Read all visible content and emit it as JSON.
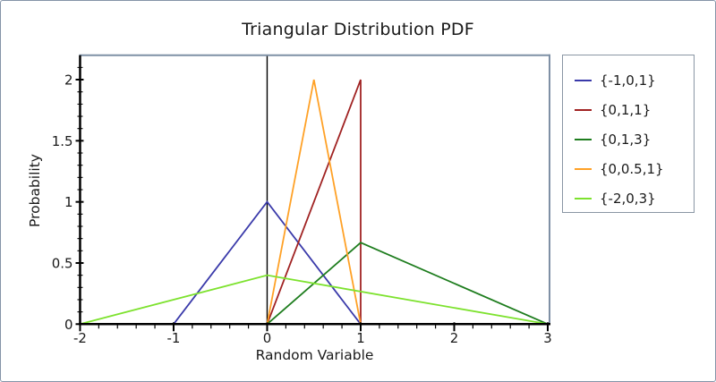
{
  "window": {
    "background": "#ffffff",
    "border_color": "#8494a8"
  },
  "chart_data": {
    "type": "line",
    "title": "Triangular Distribution PDF",
    "xlabel": "Random Variable",
    "ylabel": "Probability",
    "xlim": [
      -2,
      3
    ],
    "ylim": [
      0,
      2.2
    ],
    "x_major_ticks": [
      -2,
      -1,
      0,
      1,
      2,
      3
    ],
    "x_minor_step": 0.2,
    "y_major_ticks": [
      0,
      0.5,
      1,
      1.5,
      2
    ],
    "y_minor_step": 0.1,
    "y_minor_max": 2.1,
    "grid": false,
    "legend_position": "right-outside",
    "frame_color": "#7e90a5",
    "axis_color": "#000000",
    "tick_label_color": "#1a1a1a",
    "zero_line_x": 0,
    "series": [
      {
        "label": "{-1,0,1}",
        "color": "#3a3aaa",
        "points": [
          [
            -1,
            0
          ],
          [
            0,
            1
          ],
          [
            1,
            0
          ]
        ]
      },
      {
        "label": "{0,1,1}",
        "color": "#a02222",
        "points": [
          [
            0,
            0
          ],
          [
            1,
            2
          ],
          [
            1,
            0
          ]
        ]
      },
      {
        "label": "{0,1,3}",
        "color": "#1e7d1e",
        "points": [
          [
            0,
            0
          ],
          [
            1,
            0.6667
          ],
          [
            3,
            0
          ]
        ]
      },
      {
        "label": "{0,0.5,1}",
        "color": "#ffa126",
        "points": [
          [
            0,
            0
          ],
          [
            0.5,
            2
          ],
          [
            1,
            0
          ]
        ]
      },
      {
        "label": "{-2,0,3}",
        "color": "#7de22e",
        "points": [
          [
            -2,
            0
          ],
          [
            0,
            0.4
          ],
          [
            3,
            0
          ]
        ]
      }
    ]
  }
}
